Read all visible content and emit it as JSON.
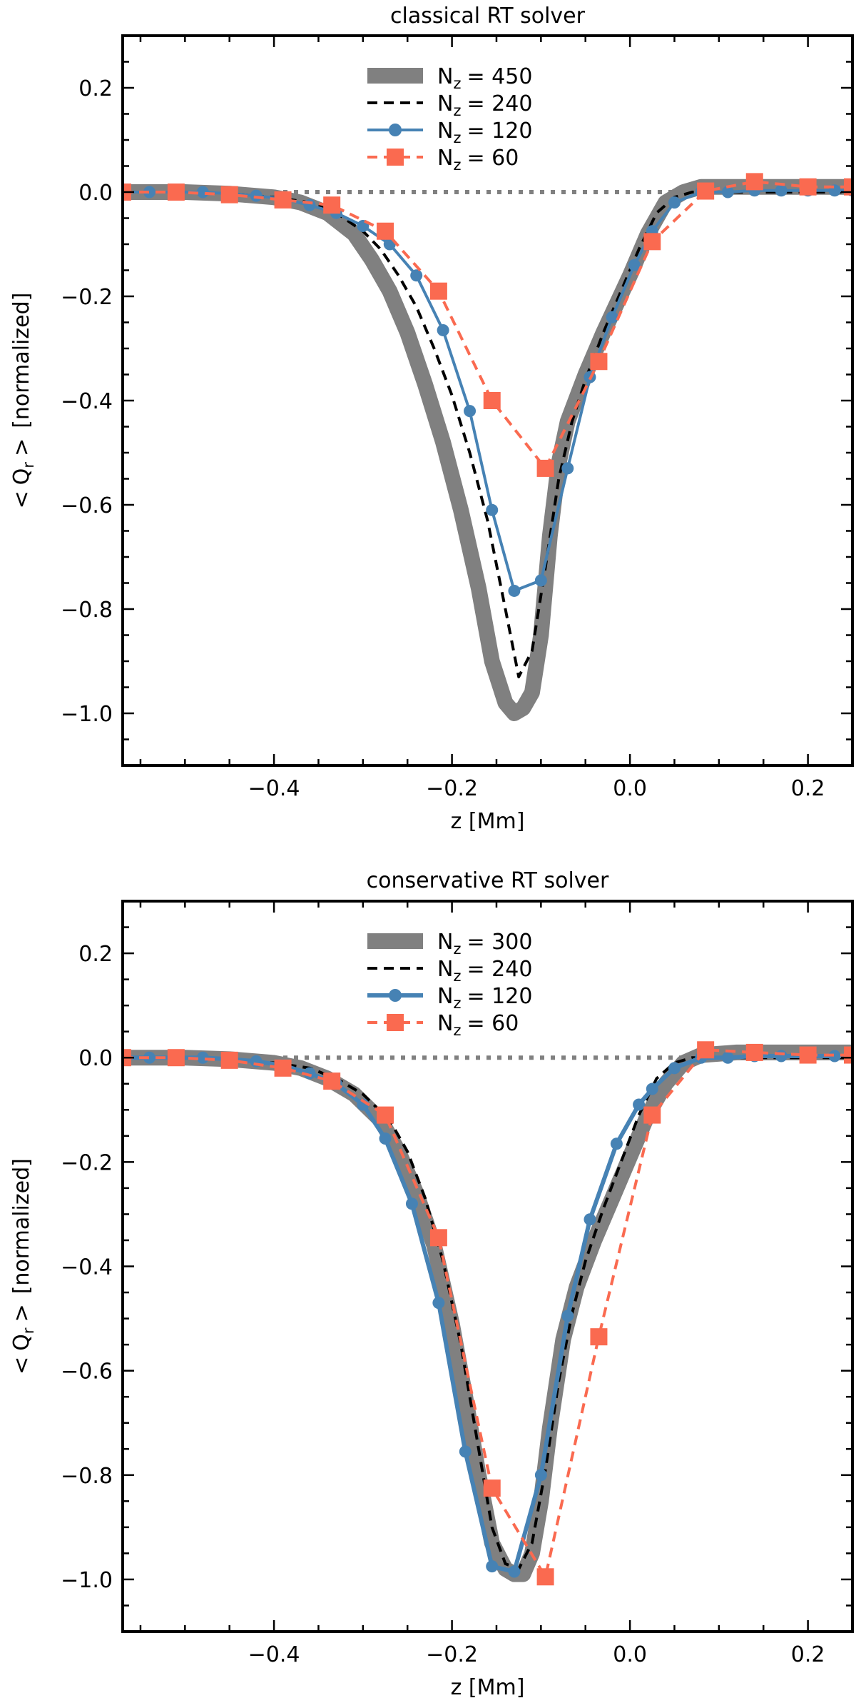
{
  "chart_data": [
    {
      "type": "line",
      "title": "classical RT solver",
      "xlabel": "z [Mm]",
      "ylabel": "< Q_r > [normalized]",
      "ylabel_parts": {
        "open": "<",
        "sym": "Q",
        "sub": "r",
        "close": ">",
        "rest": "[normalized]"
      },
      "xlim": [
        -0.57,
        0.25
      ],
      "ylim": [
        -1.1,
        0.3
      ],
      "xticks": [
        -0.4,
        -0.2,
        0.0,
        0.2
      ],
      "xtick_labels": [
        "−0.4",
        "−0.2",
        "0.0",
        "0.2"
      ],
      "yticks": [
        0.2,
        0.0,
        -0.2,
        -0.4,
        -0.6,
        -0.8,
        -1.0
      ],
      "ytick_labels": [
        "0.2",
        "0.0",
        "−0.2",
        "−0.4",
        "−0.6",
        "−0.8",
        "−1.0"
      ],
      "legend_position": "top-center",
      "reference_line": {
        "y": 0.0,
        "style": "dotted",
        "color": "#808080"
      },
      "series": [
        {
          "name": "N_z = 450",
          "label_sub": "z",
          "label_value": "= 450",
          "style": "thick",
          "color": "#808080",
          "marker": "none",
          "x": [
            -0.57,
            -0.5,
            -0.45,
            -0.4,
            -0.37,
            -0.34,
            -0.31,
            -0.29,
            -0.27,
            -0.25,
            -0.23,
            -0.21,
            -0.19,
            -0.17,
            -0.155,
            -0.14,
            -0.13,
            -0.12,
            -0.11,
            -0.1,
            -0.09,
            -0.08,
            -0.07,
            -0.05,
            -0.03,
            0.0,
            0.02,
            0.04,
            0.06,
            0.08,
            0.12,
            0.16,
            0.2,
            0.25
          ],
          "y": [
            0.0,
            0.0,
            -0.003,
            -0.01,
            -0.02,
            -0.04,
            -0.08,
            -0.13,
            -0.19,
            -0.27,
            -0.37,
            -0.48,
            -0.61,
            -0.76,
            -0.9,
            -0.98,
            -1.0,
            -0.99,
            -0.96,
            -0.85,
            -0.66,
            -0.52,
            -0.44,
            -0.35,
            -0.27,
            -0.16,
            -0.08,
            -0.02,
            0.0,
            0.01,
            0.01,
            0.01,
            0.01,
            0.01
          ]
        },
        {
          "name": "N_z = 240",
          "label_sub": "z",
          "label_value": "= 240",
          "style": "dashed",
          "color": "#000000",
          "marker": "none",
          "x": [
            -0.57,
            -0.5,
            -0.45,
            -0.4,
            -0.36,
            -0.33,
            -0.3,
            -0.28,
            -0.26,
            -0.24,
            -0.22,
            -0.2,
            -0.18,
            -0.16,
            -0.14,
            -0.125,
            -0.11,
            -0.095,
            -0.08,
            -0.065,
            -0.05,
            -0.03,
            -0.01,
            0.01,
            0.03,
            0.05,
            0.07,
            0.1,
            0.15,
            0.2,
            0.25
          ],
          "y": [
            0.0,
            0.0,
            -0.003,
            -0.01,
            -0.02,
            -0.04,
            -0.075,
            -0.11,
            -0.16,
            -0.22,
            -0.3,
            -0.39,
            -0.5,
            -0.63,
            -0.8,
            -0.93,
            -0.88,
            -0.72,
            -0.55,
            -0.44,
            -0.36,
            -0.27,
            -0.19,
            -0.11,
            -0.04,
            -0.01,
            0.0,
            0.0,
            0.0,
            0.0,
            0.0
          ]
        },
        {
          "name": "N_z = 120",
          "label_sub": "z",
          "label_value": "= 120",
          "style": "solid",
          "color": "#4682b4",
          "marker": "circle",
          "x": [
            -0.57,
            -0.54,
            -0.51,
            -0.48,
            -0.45,
            -0.42,
            -0.39,
            -0.36,
            -0.33,
            -0.3,
            -0.27,
            -0.24,
            -0.21,
            -0.18,
            -0.155,
            -0.13,
            -0.1,
            -0.07,
            -0.045,
            -0.02,
            0.005,
            0.025,
            0.05,
            0.08,
            0.11,
            0.14,
            0.17,
            0.2,
            0.23,
            0.25
          ],
          "y": [
            0.0,
            0.0,
            0.0,
            0.0,
            -0.003,
            -0.007,
            -0.013,
            -0.025,
            -0.04,
            -0.065,
            -0.1,
            -0.16,
            -0.265,
            -0.42,
            -0.61,
            -0.765,
            -0.745,
            -0.53,
            -0.355,
            -0.24,
            -0.14,
            -0.075,
            -0.02,
            0.0,
            0.0,
            0.003,
            0.003,
            0.003,
            0.003,
            0.003
          ]
        },
        {
          "name": "N_z = 60",
          "label_sub": "z",
          "label_value": "= 60",
          "style": "dashed",
          "color": "#fa6a50",
          "marker": "square",
          "x": [
            -0.57,
            -0.51,
            -0.45,
            -0.39,
            -0.335,
            -0.275,
            -0.215,
            -0.155,
            -0.095,
            -0.035,
            0.025,
            0.085,
            0.14,
            0.2,
            0.25
          ],
          "y": [
            0.0,
            0.0,
            -0.005,
            -0.015,
            -0.025,
            -0.075,
            -0.19,
            -0.4,
            -0.53,
            -0.325,
            -0.095,
            0.002,
            0.02,
            0.01,
            0.01
          ]
        }
      ]
    },
    {
      "type": "line",
      "title": "conservative RT solver",
      "xlabel": "z [Mm]",
      "ylabel": "< Q_r > [normalized]",
      "ylabel_parts": {
        "open": "<",
        "sym": "Q",
        "sub": "r",
        "close": ">",
        "rest": "[normalized]"
      },
      "xlim": [
        -0.57,
        0.25
      ],
      "ylim": [
        -1.1,
        0.3
      ],
      "xticks": [
        -0.4,
        -0.2,
        0.0,
        0.2
      ],
      "xtick_labels": [
        "−0.4",
        "−0.2",
        "0.0",
        "0.2"
      ],
      "yticks": [
        0.2,
        0.0,
        -0.2,
        -0.4,
        -0.6,
        -0.8,
        -1.0
      ],
      "ytick_labels": [
        "0.2",
        "0.0",
        "−0.2",
        "−0.4",
        "−0.6",
        "−0.8",
        "−1.0"
      ],
      "legend_position": "top-center",
      "reference_line": {
        "y": 0.0,
        "style": "dotted",
        "color": "#808080"
      },
      "series": [
        {
          "name": "N_z = 300",
          "label_sub": "z",
          "label_value": "= 300",
          "style": "thick",
          "color": "#808080",
          "marker": "none",
          "x": [
            -0.57,
            -0.5,
            -0.45,
            -0.4,
            -0.37,
            -0.34,
            -0.31,
            -0.28,
            -0.26,
            -0.24,
            -0.22,
            -0.2,
            -0.185,
            -0.17,
            -0.155,
            -0.14,
            -0.13,
            -0.12,
            -0.11,
            -0.1,
            -0.09,
            -0.075,
            -0.06,
            -0.04,
            -0.02,
            0.0,
            0.02,
            0.04,
            0.06,
            0.08,
            0.12,
            0.16,
            0.2,
            0.25
          ],
          "y": [
            0.0,
            0.0,
            -0.003,
            -0.01,
            -0.02,
            -0.04,
            -0.07,
            -0.12,
            -0.18,
            -0.26,
            -0.36,
            -0.51,
            -0.65,
            -0.8,
            -0.93,
            -0.98,
            -0.99,
            -0.99,
            -0.95,
            -0.85,
            -0.71,
            -0.54,
            -0.44,
            -0.35,
            -0.27,
            -0.19,
            -0.11,
            -0.05,
            -0.01,
            0.005,
            0.01,
            0.01,
            0.01,
            0.01
          ]
        },
        {
          "name": "N_z = 240",
          "label_sub": "z",
          "label_value": "= 240",
          "style": "dashed",
          "color": "#000000",
          "marker": "none",
          "x": [
            -0.57,
            -0.5,
            -0.45,
            -0.4,
            -0.36,
            -0.33,
            -0.3,
            -0.27,
            -0.25,
            -0.23,
            -0.21,
            -0.19,
            -0.17,
            -0.155,
            -0.14,
            -0.125,
            -0.11,
            -0.095,
            -0.08,
            -0.065,
            -0.05,
            -0.03,
            -0.01,
            0.01,
            0.03,
            0.05,
            0.07,
            0.1,
            0.15,
            0.2,
            0.25
          ],
          "y": [
            0.0,
            0.0,
            -0.003,
            -0.01,
            -0.02,
            -0.04,
            -0.07,
            -0.12,
            -0.18,
            -0.27,
            -0.39,
            -0.55,
            -0.75,
            -0.9,
            -0.97,
            -0.98,
            -0.93,
            -0.79,
            -0.62,
            -0.49,
            -0.39,
            -0.29,
            -0.2,
            -0.11,
            -0.04,
            -0.01,
            0.0,
            0.0,
            0.0,
            0.0,
            0.0
          ]
        },
        {
          "name": "N_z = 120",
          "label_sub": "z",
          "label_value": "= 120",
          "style": "solid_thick",
          "color": "#4682b4",
          "marker": "circle",
          "x": [
            -0.57,
            -0.54,
            -0.51,
            -0.48,
            -0.45,
            -0.42,
            -0.39,
            -0.36,
            -0.33,
            -0.3,
            -0.275,
            -0.245,
            -0.215,
            -0.185,
            -0.155,
            -0.13,
            -0.1,
            -0.07,
            -0.045,
            -0.015,
            0.01,
            0.025,
            0.05,
            0.08,
            0.11,
            0.14,
            0.17,
            0.2,
            0.23,
            0.25
          ],
          "y": [
            0.0,
            0.0,
            0.0,
            0.0,
            -0.003,
            -0.007,
            -0.015,
            -0.03,
            -0.05,
            -0.09,
            -0.155,
            -0.28,
            -0.47,
            -0.755,
            -0.975,
            -0.985,
            -0.8,
            -0.495,
            -0.31,
            -0.165,
            -0.09,
            -0.06,
            -0.02,
            0.0,
            0.0,
            0.003,
            0.003,
            0.003,
            0.003,
            0.003
          ]
        },
        {
          "name": "N_z = 60",
          "label_sub": "z",
          "label_value": "= 60",
          "style": "dashed",
          "color": "#fa6a50",
          "marker": "square",
          "x": [
            -0.57,
            -0.51,
            -0.45,
            -0.39,
            -0.335,
            -0.275,
            -0.215,
            -0.155,
            -0.095,
            -0.035,
            0.025,
            0.085,
            0.14,
            0.2,
            0.25
          ],
          "y": [
            0.0,
            0.0,
            -0.005,
            -0.02,
            -0.045,
            -0.11,
            -0.345,
            -0.825,
            -0.995,
            -0.535,
            -0.11,
            0.015,
            0.01,
            0.005,
            0.005
          ]
        }
      ]
    }
  ]
}
